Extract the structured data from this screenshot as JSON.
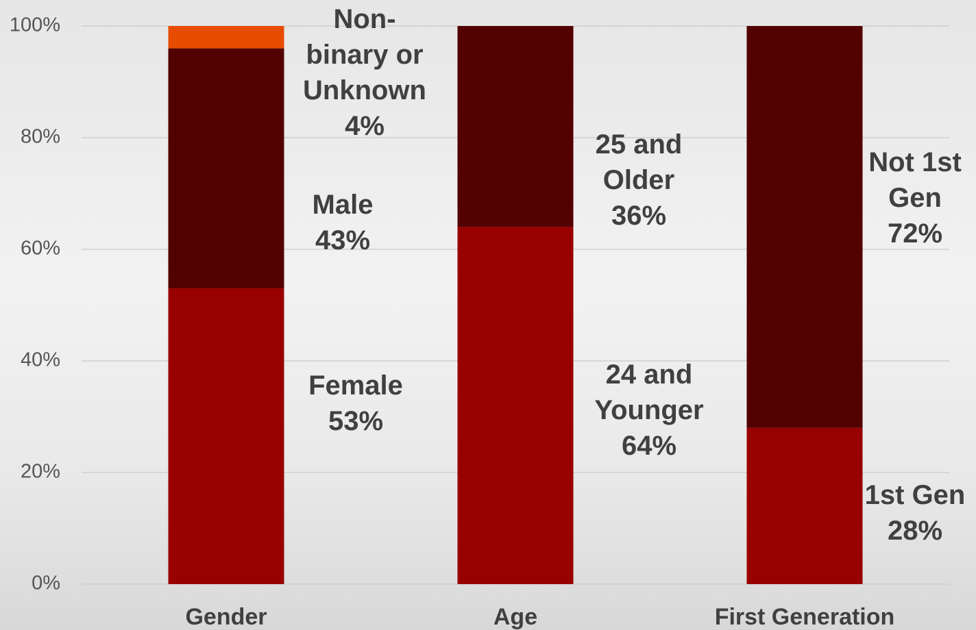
{
  "chart_data": {
    "type": "stacked_bar",
    "categories": [
      "Gender",
      "Age",
      "First Generation"
    ],
    "ylim": [
      0,
      100
    ],
    "yticks": [
      {
        "value": 0,
        "label": "0%"
      },
      {
        "value": 20,
        "label": "20%"
      },
      {
        "value": 40,
        "label": "40%"
      },
      {
        "value": 60,
        "label": "60%"
      },
      {
        "value": 80,
        "label": "80%"
      },
      {
        "value": 100,
        "label": "100%"
      }
    ],
    "grid": true,
    "stacks": [
      {
        "segments": [
          {
            "name": "Female",
            "value": 53,
            "value_label": "53%",
            "color": "#990000"
          },
          {
            "name": "Male",
            "value": 43,
            "value_label": "43%",
            "color": "#520000"
          },
          {
            "name": "Non-binary or Unknown",
            "value": 4,
            "value_label": "4%",
            "color": "#e84c00"
          }
        ]
      },
      {
        "segments": [
          {
            "name": "24 and Younger",
            "value": 64,
            "value_label": "64%",
            "color": "#990000"
          },
          {
            "name": "25 and Older",
            "value": 36,
            "value_label": "36%",
            "color": "#520000"
          }
        ]
      },
      {
        "segments": [
          {
            "name": "1st Gen",
            "value": 28,
            "value_label": "28%",
            "color": "#990000"
          },
          {
            "name": "Not 1st Gen",
            "value": 72,
            "value_label": "72%",
            "color": "#520000"
          }
        ]
      }
    ]
  }
}
